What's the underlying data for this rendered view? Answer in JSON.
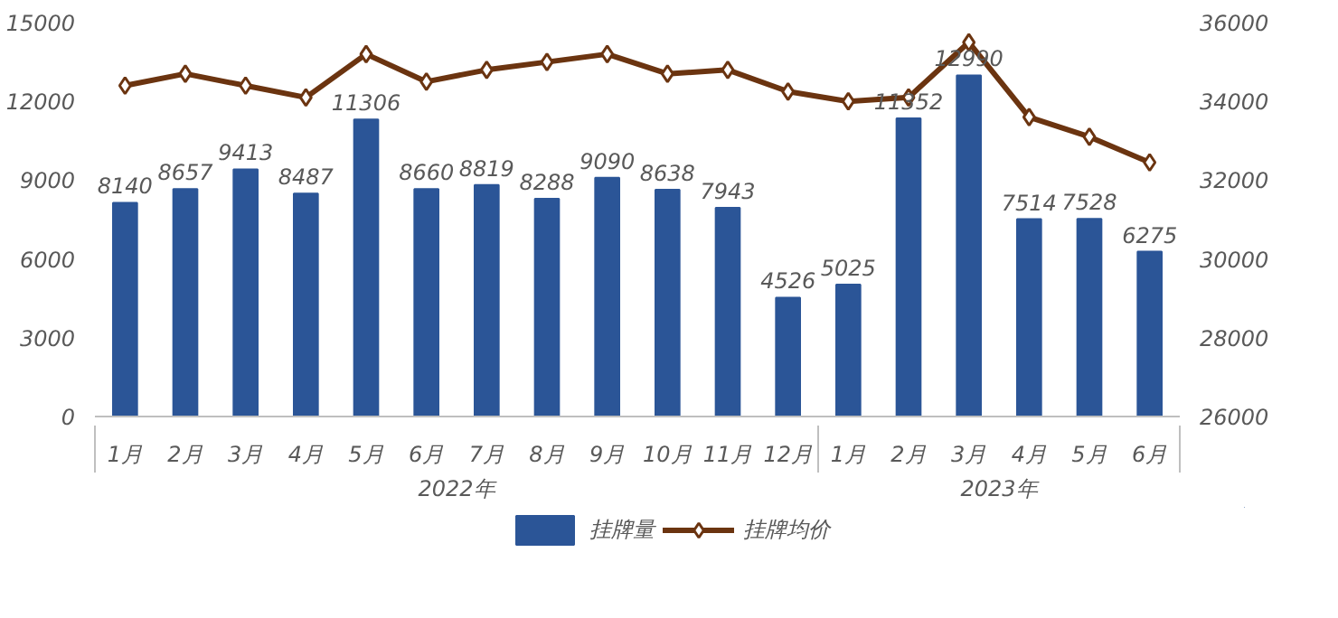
{
  "chart_data": {
    "type": "bar",
    "categories": [
      "1月",
      "2月",
      "3月",
      "4月",
      "5月",
      "6月",
      "7月",
      "8月",
      "9月",
      "10月",
      "11月",
      "12月",
      "1月",
      "2月",
      "3月",
      "4月",
      "5月",
      "6月"
    ],
    "annotations": [
      "2022年",
      "2023年"
    ],
    "series": [
      {
        "name": "挂牌量",
        "color": "#2b5597",
        "values": [
          8140,
          8657,
          9413,
          8487,
          11306,
          8660,
          8819,
          8288,
          9090,
          8638,
          7943,
          4526,
          5025,
          11352,
          12990,
          7514,
          7528,
          6275
        ],
        "value_labels": [
          "8140",
          "8657",
          "9413",
          "8487",
          "11306",
          "8660",
          "8819",
          "8288",
          "9090",
          "8638",
          "7943",
          "4526",
          "5025",
          "11352",
          "12990",
          "7514",
          "7528",
          "6275"
        ]
      },
      {
        "name": "挂牌均价",
        "type": "line",
        "axis": "y2",
        "color": "#6b3410",
        "marker": "diamond",
        "values": [
          34400,
          34700,
          34400,
          34100,
          35200,
          34500,
          34800,
          35000,
          35200,
          34700,
          34800,
          34250,
          34000,
          34100,
          35500,
          33600,
          33100,
          32450
        ]
      }
    ],
    "ylim": [
      0,
      15000
    ],
    "yticks": [
      0,
      3000,
      6000,
      9000,
      12000,
      15000
    ],
    "y2lim": [
      26000,
      36000
    ],
    "y2ticks": [
      26000,
      28000,
      30000,
      32000,
      34000,
      36000
    ],
    "grid": false,
    "legend": "bottom"
  }
}
